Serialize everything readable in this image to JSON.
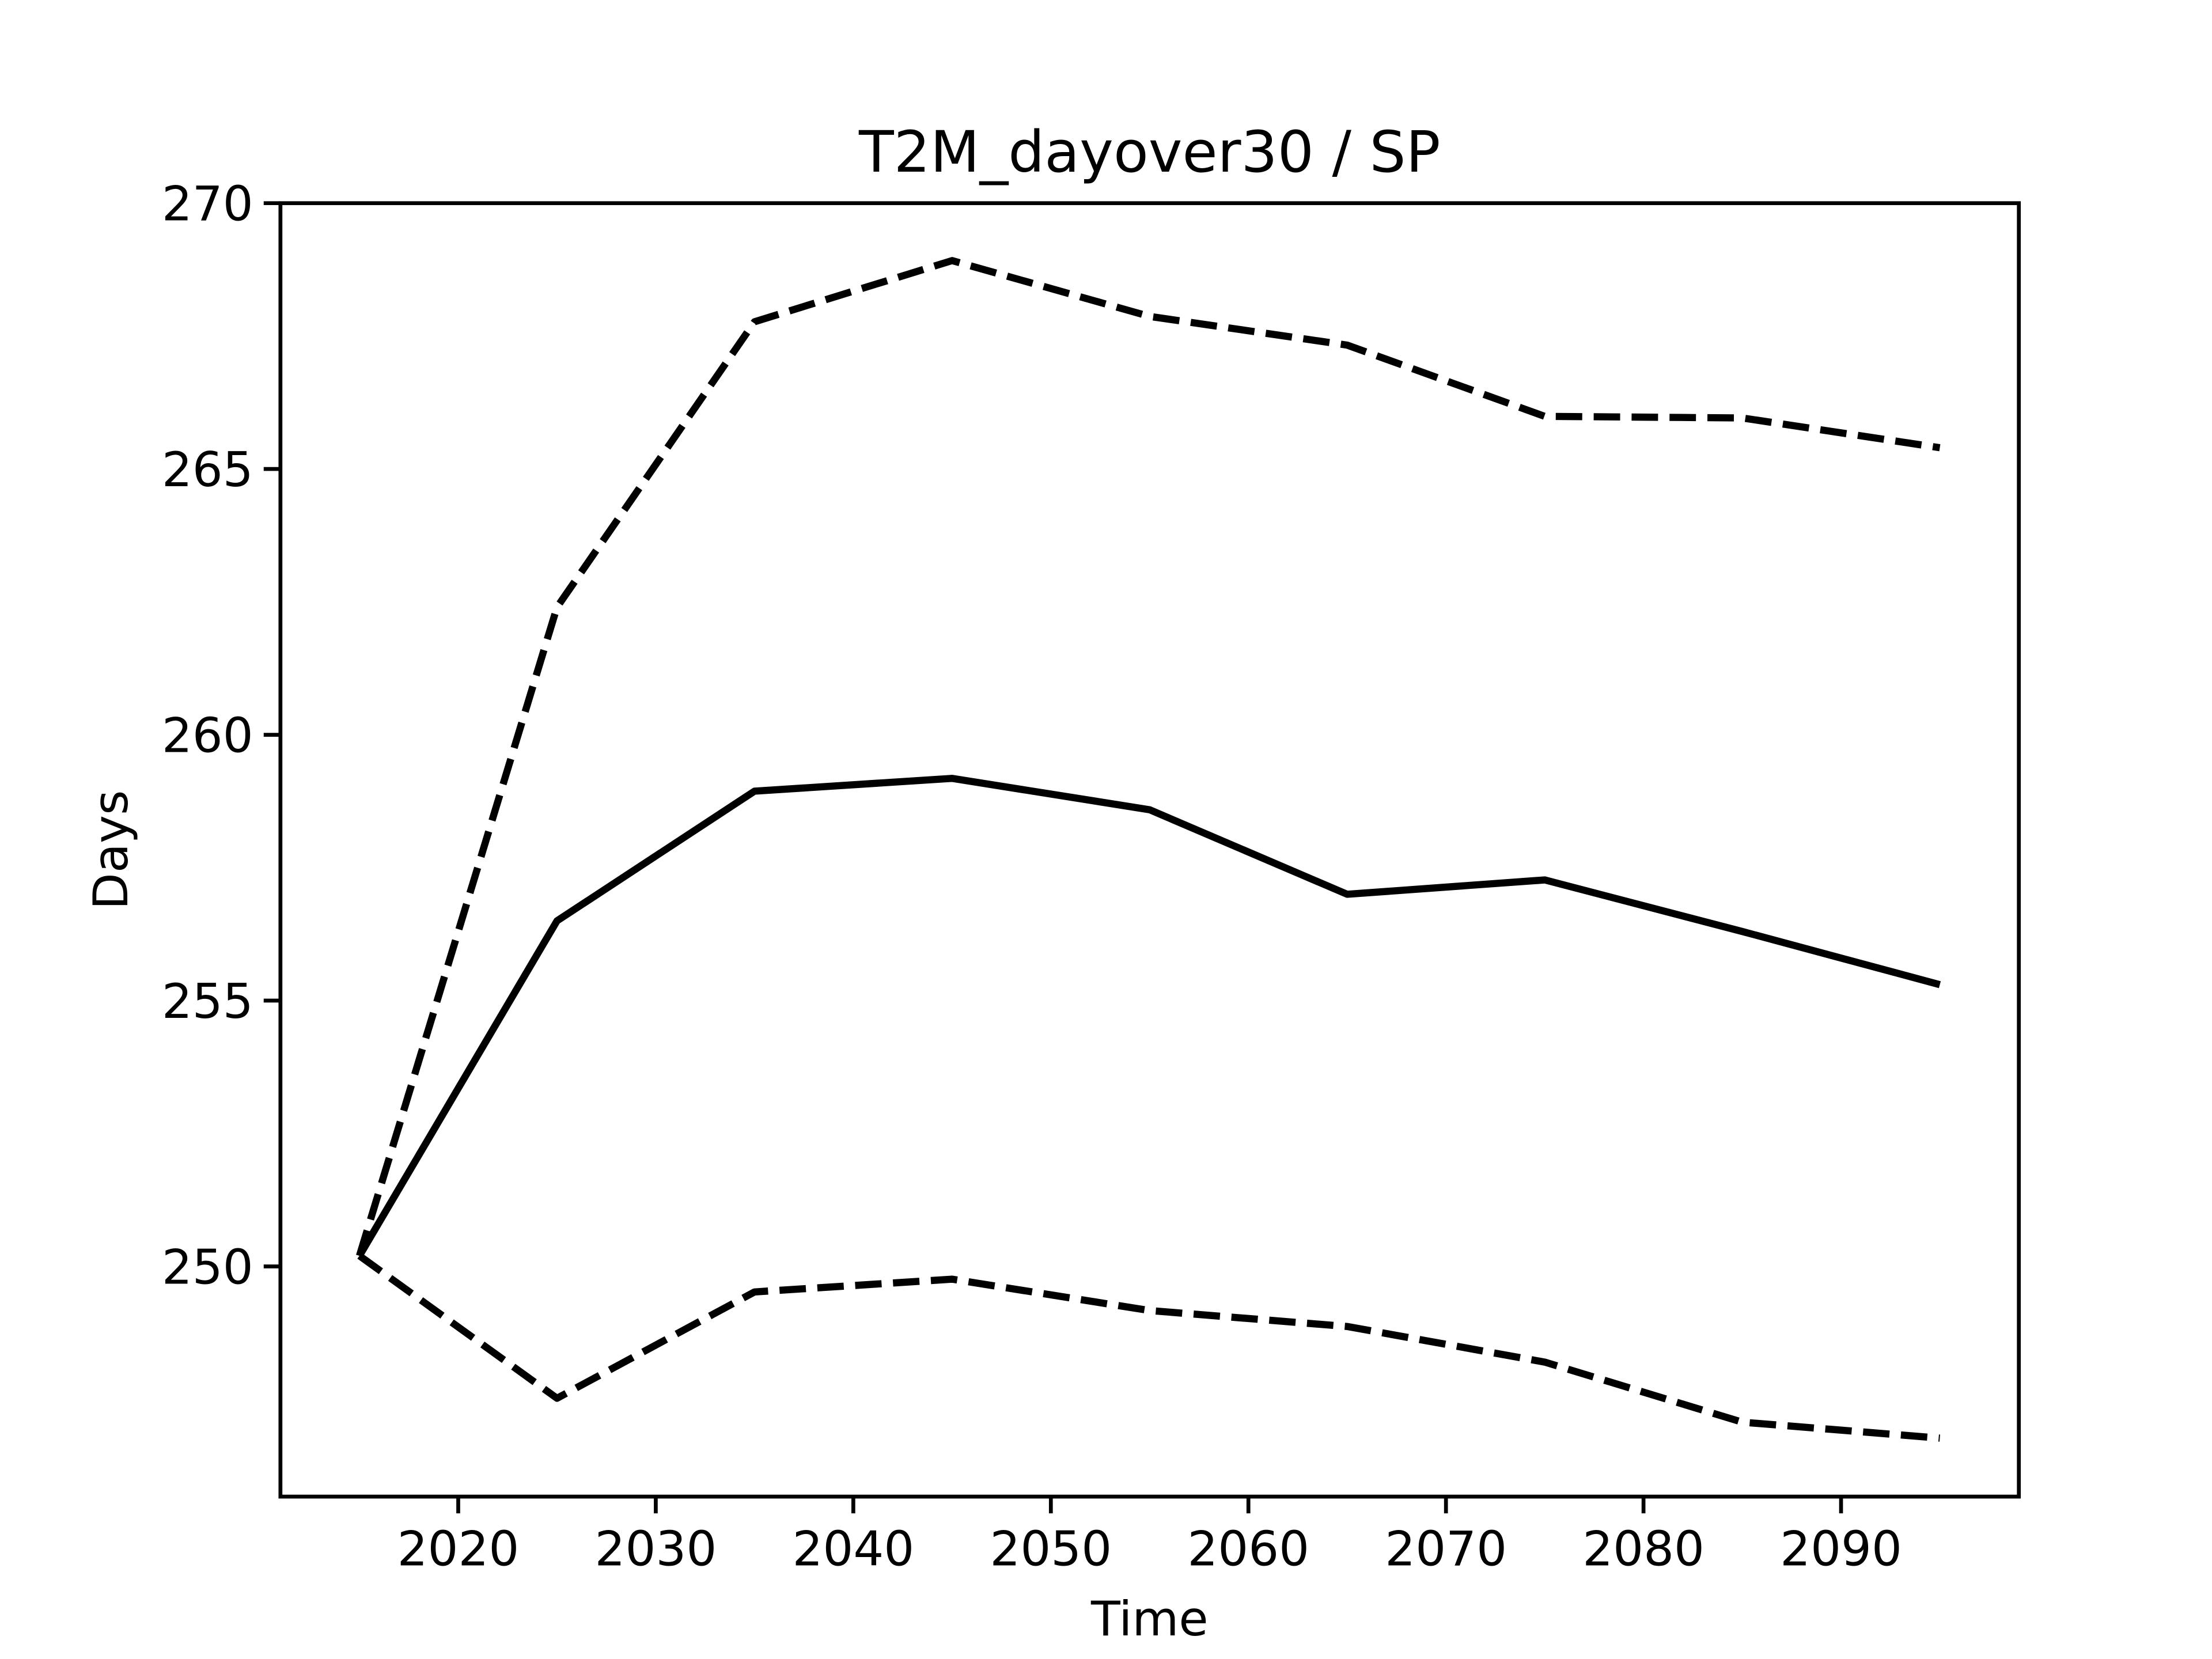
{
  "chart_data": {
    "type": "line",
    "title": "T2M_dayover30 / SP",
    "xlabel": "Time",
    "ylabel": "Days",
    "x": [
      2015,
      2025,
      2035,
      2045,
      2055,
      2065,
      2075,
      2085,
      2095
    ],
    "series": [
      {
        "color": "#000000",
        "linestyle": "solid",
        "values": [
          250.2,
          256.5,
          258.94,
          259.18,
          258.59,
          257.0,
          257.27,
          256.3,
          255.3
        ]
      },
      {
        "color": "#000000",
        "linestyle": "dashed",
        "values": [
          250.2,
          262.4,
          267.77,
          268.92,
          267.87,
          267.33,
          265.99,
          265.96,
          265.4
        ]
      },
      {
        "color": "#000000",
        "linestyle": "dashed",
        "values": [
          250.2,
          247.52,
          249.52,
          249.76,
          249.17,
          248.87,
          248.2,
          247.07,
          246.77
        ]
      }
    ],
    "xlim": [
      2011,
      2099
    ],
    "ylim": [
      245.67,
      270
    ],
    "xticks": [
      2020,
      2030,
      2040,
      2050,
      2060,
      2070,
      2080,
      2090
    ],
    "yticks": [
      250,
      255,
      260,
      265,
      270
    ],
    "grid": false
  }
}
